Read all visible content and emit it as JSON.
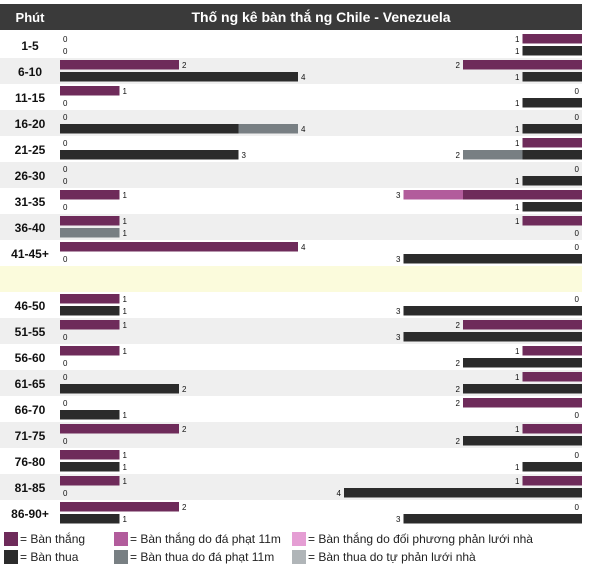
{
  "chart_data": {
    "type": "bar",
    "title": "Thố ng kê bàn thắ ng Chile - Venezuela",
    "header_label": "Phút",
    "categories": [
      "1-5",
      "6-10",
      "11-15",
      "16-20",
      "21-25",
      "26-30",
      "31-35",
      "36-40",
      "41-45+",
      "",
      "46-50",
      "51-55",
      "56-60",
      "61-65",
      "66-70",
      "71-75",
      "76-80",
      "81-85",
      "86-90+"
    ],
    "scale_max": 4,
    "series_keys": [
      "goals",
      "pen_goals",
      "own_goals_for",
      "conceded",
      "pen_conceded",
      "own_goals_against"
    ],
    "left": [
      {
        "goals": [
          0
        ],
        "conceded": [
          0
        ]
      },
      {
        "goals": [
          2
        ],
        "conceded": [
          4
        ]
      },
      {
        "goals": [
          1
        ],
        "conceded": [
          0
        ]
      },
      {
        "goals": [
          0
        ],
        "conceded": [
          3,
          1
        ]
      },
      {
        "goals": [
          0
        ],
        "conceded": [
          3
        ]
      },
      {
        "goals": [
          0
        ],
        "conceded": [
          0
        ]
      },
      {
        "goals": [
          1
        ],
        "conceded": [
          0
        ]
      },
      {
        "goals": [
          1
        ],
        "conceded": [
          0,
          1
        ]
      },
      {
        "goals": [
          4
        ],
        "conceded": [
          0
        ]
      },
      null,
      {
        "goals": [
          1
        ],
        "conceded": [
          1
        ]
      },
      {
        "goals": [
          1
        ],
        "conceded": [
          0
        ]
      },
      {
        "goals": [
          1
        ],
        "conceded": [
          0
        ]
      },
      {
        "goals": [
          0
        ],
        "conceded": [
          2
        ]
      },
      {
        "goals": [
          0
        ],
        "conceded": [
          1
        ]
      },
      {
        "goals": [
          2
        ],
        "conceded": [
          0
        ]
      },
      {
        "goals": [
          1
        ],
        "conceded": [
          1
        ]
      },
      {
        "goals": [
          1
        ],
        "conceded": [
          0
        ]
      },
      {
        "goals": [
          2
        ],
        "conceded": [
          1
        ]
      }
    ],
    "right": [
      {
        "goals": [
          1
        ],
        "conceded": [
          1
        ]
      },
      {
        "goals": [
          2
        ],
        "conceded": [
          1
        ]
      },
      {
        "goals": [
          0
        ],
        "conceded": [
          1
        ]
      },
      {
        "goals": [
          0
        ],
        "conceded": [
          1
        ]
      },
      {
        "goals": [
          1
        ],
        "conceded": [
          1,
          1
        ]
      },
      {
        "goals": [
          0
        ],
        "conceded": [
          1
        ]
      },
      {
        "goals": [
          2,
          1
        ],
        "conceded": [
          1
        ]
      },
      {
        "goals": [
          1
        ],
        "conceded": [
          0
        ]
      },
      {
        "goals": [
          0
        ],
        "conceded": [
          3
        ]
      },
      null,
      {
        "goals": [
          0
        ],
        "conceded": [
          3
        ]
      },
      {
        "goals": [
          2
        ],
        "conceded": [
          3
        ]
      },
      {
        "goals": [
          1
        ],
        "conceded": [
          2
        ]
      },
      {
        "goals": [
          1
        ],
        "conceded": [
          2
        ]
      },
      {
        "goals": [
          2
        ],
        "conceded": [
          0
        ]
      },
      {
        "goals": [
          1
        ],
        "conceded": [
          2
        ]
      },
      {
        "goals": [
          0
        ],
        "conceded": [
          1
        ]
      },
      {
        "goals": [
          1
        ],
        "conceded": [
          4
        ]
      },
      {
        "goals": [
          0
        ],
        "conceded": [
          3
        ]
      }
    ],
    "left_labels": [
      [
        "0",
        "0"
      ],
      [
        "2",
        "4"
      ],
      [
        "1",
        "0"
      ],
      [
        "0",
        "4"
      ],
      [
        "0",
        "3"
      ],
      [
        "0",
        "0"
      ],
      [
        "1",
        "0"
      ],
      [
        "1",
        "1"
      ],
      [
        "4",
        "0"
      ],
      null,
      [
        "1",
        "1"
      ],
      [
        "1",
        "0"
      ],
      [
        "1",
        "0"
      ],
      [
        "0",
        "2"
      ],
      [
        "0",
        "1"
      ],
      [
        "2",
        "0"
      ],
      [
        "1",
        "1"
      ],
      [
        "1",
        "0"
      ],
      [
        "2",
        "1"
      ]
    ],
    "right_labels": [
      [
        "1",
        "1"
      ],
      [
        "2",
        "1"
      ],
      [
        "0",
        "1"
      ],
      [
        "0",
        "1"
      ],
      [
        "1",
        "2"
      ],
      [
        "0",
        "1"
      ],
      [
        "3",
        "1"
      ],
      [
        "1",
        "0"
      ],
      [
        "0",
        "3"
      ],
      null,
      [
        "0",
        "3"
      ],
      [
        "2",
        "3"
      ],
      [
        "1",
        "2"
      ],
      [
        "1",
        "2"
      ],
      [
        "2",
        "0"
      ],
      [
        "1",
        "2"
      ],
      [
        "0",
        "1"
      ],
      [
        "1",
        "4"
      ],
      [
        "0",
        "3"
      ]
    ],
    "colors": {
      "goals": "#6e2b5a",
      "pen_goals": "#b25c9c",
      "own_goals_for": "#e59ed4",
      "conceded": "#2b2b2b",
      "pen_conceded": "#787f83",
      "own_goals_against": "#b0b5b8",
      "header_bg": "#3a3a3a",
      "row_alt": "#efefef",
      "halftime": "#fbfbdc"
    },
    "legend": [
      {
        "key": "goals",
        "label": "= Bàn thắng"
      },
      {
        "key": "pen_goals",
        "label": "= Bàn thắng do đá phạt 11m"
      },
      {
        "key": "own_goals_for",
        "label": "= Bàn thắng do đối phương phản lưới nhà"
      },
      {
        "key": "conceded",
        "label": "= Bàn thua"
      },
      {
        "key": "pen_conceded",
        "label": "= Bàn thua do đá phạt 11m"
      },
      {
        "key": "own_goals_against",
        "label": "= Bàn thua do tự phản lưới nhà"
      }
    ]
  }
}
